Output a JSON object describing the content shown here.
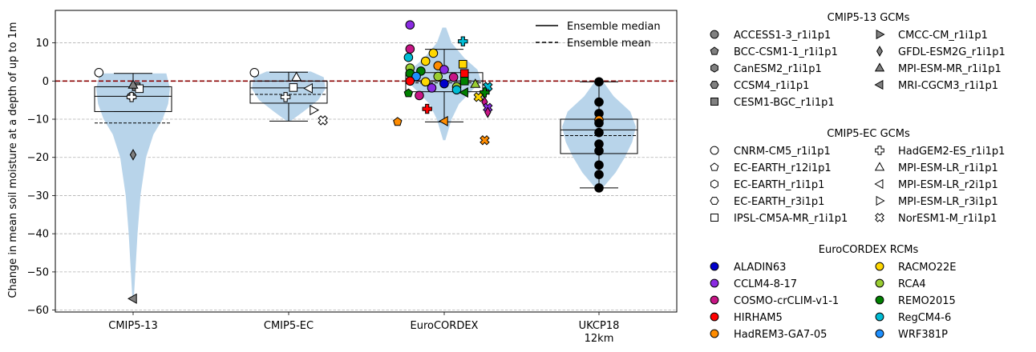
{
  "chart_data": {
    "type": "violin+box+scatter",
    "ylabel": "Change in mean soil moisture at a depth of up to 1m",
    "ylim": [
      -60.5,
      18.5
    ],
    "yticks": [
      10,
      0,
      -10,
      -20,
      -30,
      -40,
      -50,
      -60
    ],
    "grid": "horizontal dashed",
    "zero_line": {
      "y": 0,
      "color": "#8b0000",
      "style": "dashed"
    },
    "categories": [
      "CMIP5-13",
      "CMIP5-EC",
      "EuroCORDEX",
      "UKCP18\n12km"
    ],
    "legend_lines": [
      {
        "label": "Ensemble median",
        "style": "solid"
      },
      {
        "label": "Ensemble mean",
        "style": "dashed"
      }
    ],
    "legend_position": "top-right",
    "violins": [
      {
        "category": 0,
        "profile": [
          [
            2,
            0.9
          ],
          [
            -2,
            1.0
          ],
          [
            -6,
            0.95
          ],
          [
            -10,
            0.8
          ],
          [
            -14,
            0.55
          ],
          [
            -20,
            0.35
          ],
          [
            -30,
            0.2
          ],
          [
            -40,
            0.12
          ],
          [
            -50,
            0.06
          ],
          [
            -57,
            0.02
          ]
        ]
      },
      {
        "category": 1,
        "profile": [
          [
            2.5,
            0.6
          ],
          [
            1,
            0.95
          ],
          [
            -2,
            1.0
          ],
          [
            -5,
            0.8
          ],
          [
            -8,
            0.4
          ],
          [
            -10.5,
            0.05
          ]
        ]
      },
      {
        "category": 2,
        "profile": [
          [
            14,
            0.05
          ],
          [
            10,
            0.2
          ],
          [
            6,
            0.55
          ],
          [
            3,
            0.9
          ],
          [
            0,
            1.0
          ],
          [
            -3,
            0.7
          ],
          [
            -6,
            0.4
          ],
          [
            -10,
            0.2
          ],
          [
            -15.5,
            0.03
          ]
        ]
      },
      {
        "category": 3,
        "profile": [
          [
            0,
            0.1
          ],
          [
            -4,
            0.4
          ],
          [
            -8,
            0.85
          ],
          [
            -12,
            1.0
          ],
          [
            -16,
            0.9
          ],
          [
            -20,
            0.7
          ],
          [
            -24,
            0.45
          ],
          [
            -28,
            0.1
          ]
        ]
      }
    ],
    "boxes": [
      {
        "category": 0,
        "q1": -8,
        "median": -4,
        "q3": -1.5,
        "whisker_low": -8,
        "whisker_high": 2,
        "mean": -11
      },
      {
        "category": 1,
        "q1": -5.8,
        "median": -1.8,
        "q3": 0,
        "whisker_low": -10.5,
        "whisker_high": 2.3,
        "mean": -3.5
      },
      {
        "category": 2,
        "q1": -2.8,
        "median": 0,
        "q3": 2.2,
        "whisker_low": -10.7,
        "whisker_high": 8.3,
        "mean": -0.5
      },
      {
        "category": 3,
        "q1": -19,
        "median": -12.8,
        "q3": -10,
        "whisker_low": -28,
        "whisker_high": -0.2,
        "mean": -14.3
      }
    ],
    "points": [
      {
        "category": 0,
        "dx": -0.22,
        "y": 2.2,
        "marker": "circle",
        "filled": false,
        "color": "#ffffff"
      },
      {
        "category": 0,
        "dx": 0.02,
        "y": -1.5,
        "marker": "square",
        "filled": true,
        "color": "#808080"
      },
      {
        "category": 0,
        "dx": 0.04,
        "y": -2.0,
        "marker": "square",
        "filled": false,
        "color": "#ffffff"
      },
      {
        "category": 0,
        "dx": 0.0,
        "y": -1.0,
        "marker": "triangle-up",
        "filled": true,
        "color": "#808080"
      },
      {
        "category": 0,
        "dx": -0.01,
        "y": -4.0,
        "marker": "hexagon",
        "filled": true,
        "color": "#808080"
      },
      {
        "category": 0,
        "dx": -0.01,
        "y": -4.2,
        "marker": "plus",
        "filled": false,
        "color": "#ffffff"
      },
      {
        "category": 0,
        "dx": 0.0,
        "y": -19.3,
        "marker": "thin-diamond",
        "filled": true,
        "color": "#808080"
      },
      {
        "category": 0,
        "dx": 0.0,
        "y": -57,
        "marker": "triangle-left",
        "filled": true,
        "color": "#808080"
      },
      {
        "category": 1,
        "dx": -0.22,
        "y": 2.2,
        "marker": "circle",
        "filled": false,
        "color": "#ffffff"
      },
      {
        "category": 1,
        "dx": 0.05,
        "y": 1.0,
        "marker": "triangle-up",
        "filled": false,
        "color": "#ffffff"
      },
      {
        "category": 1,
        "dx": 0.03,
        "y": -1.7,
        "marker": "square",
        "filled": false,
        "color": "#ffffff"
      },
      {
        "category": 1,
        "dx": 0.13,
        "y": -1.9,
        "marker": "triangle-left",
        "filled": false,
        "color": "#ffffff"
      },
      {
        "category": 1,
        "dx": -0.02,
        "y": -4.2,
        "marker": "plus",
        "filled": false,
        "color": "#ffffff"
      },
      {
        "category": 1,
        "dx": 0.16,
        "y": -7.6,
        "marker": "triangle-right",
        "filled": false,
        "color": "#ffffff"
      },
      {
        "category": 1,
        "dx": 0.22,
        "y": -10.3,
        "marker": "x",
        "filled": false,
        "color": "#ffffff"
      },
      {
        "category": 2,
        "dx": -0.22,
        "y": 14.7,
        "marker": "circle",
        "filled": true,
        "color": "#8a2be2"
      },
      {
        "category": 2,
        "dx": 0.12,
        "y": 10.4,
        "marker": "plus",
        "filled": true,
        "color": "#00bcd4"
      },
      {
        "category": 2,
        "dx": -0.22,
        "y": 8.4,
        "marker": "circle",
        "filled": true,
        "color": "#c71585"
      },
      {
        "category": 2,
        "dx": -0.07,
        "y": 7.3,
        "marker": "circle",
        "filled": true,
        "color": "#ffd700"
      },
      {
        "category": 2,
        "dx": -0.23,
        "y": 6.2,
        "marker": "circle",
        "filled": true,
        "color": "#00bcd4"
      },
      {
        "category": 2,
        "dx": -0.12,
        "y": 5.2,
        "marker": "circle",
        "filled": true,
        "color": "#ffd700"
      },
      {
        "category": 2,
        "dx": 0.12,
        "y": 4.4,
        "marker": "square",
        "filled": true,
        "color": "#ffd700"
      },
      {
        "category": 2,
        "dx": -0.22,
        "y": 3.4,
        "marker": "circle",
        "filled": true,
        "color": "#9acd32"
      },
      {
        "category": 2,
        "dx": -0.04,
        "y": 4.0,
        "marker": "circle",
        "filled": true,
        "color": "#ff8c00"
      },
      {
        "category": 2,
        "dx": 0.0,
        "y": 3.0,
        "marker": "circle",
        "filled": true,
        "color": "#8a2be2"
      },
      {
        "category": 2,
        "dx": -0.15,
        "y": 2.6,
        "marker": "circle",
        "filled": true,
        "color": "#008000"
      },
      {
        "category": 2,
        "dx": -0.22,
        "y": 2.0,
        "marker": "circle",
        "filled": true,
        "color": "#008000"
      },
      {
        "category": 2,
        "dx": 0.13,
        "y": 2.0,
        "marker": "square",
        "filled": true,
        "color": "#ff0000"
      },
      {
        "category": 2,
        "dx": -0.18,
        "y": 1.2,
        "marker": "circle",
        "filled": true,
        "color": "#1e90ff"
      },
      {
        "category": 2,
        "dx": -0.04,
        "y": 1.2,
        "marker": "circle",
        "filled": true,
        "color": "#9acd32"
      },
      {
        "category": 2,
        "dx": 0.06,
        "y": 1.0,
        "marker": "circle",
        "filled": true,
        "color": "#c71585"
      },
      {
        "category": 2,
        "dx": -0.22,
        "y": 0.0,
        "marker": "circle",
        "filled": true,
        "color": "#ff0000"
      },
      {
        "category": 2,
        "dx": -0.12,
        "y": -0.2,
        "marker": "circle",
        "filled": true,
        "color": "#ffd700"
      },
      {
        "category": 2,
        "dx": 0.13,
        "y": 0.0,
        "marker": "square",
        "filled": true,
        "color": "#008000"
      },
      {
        "category": 2,
        "dx": 0.2,
        "y": -0.8,
        "marker": "triangle-up",
        "filled": true,
        "color": "#9acd32"
      },
      {
        "category": 2,
        "dx": 0.0,
        "y": -0.7,
        "marker": "circle",
        "filled": true,
        "color": "#0000cd"
      },
      {
        "category": 2,
        "dx": 0.08,
        "y": -1.5,
        "marker": "circle",
        "filled": true,
        "color": "#9acd32"
      },
      {
        "category": 2,
        "dx": -0.08,
        "y": -1.8,
        "marker": "circle",
        "filled": true,
        "color": "#8a2be2"
      },
      {
        "category": 2,
        "dx": 0.08,
        "y": -2.3,
        "marker": "circle",
        "filled": true,
        "color": "#00bcd4"
      },
      {
        "category": 2,
        "dx": 0.28,
        "y": -1.5,
        "marker": "x",
        "filled": true,
        "color": "#00bcd4"
      },
      {
        "category": 2,
        "dx": -0.23,
        "y": -3.2,
        "marker": "pentagon",
        "filled": true,
        "color": "#008000"
      },
      {
        "category": 2,
        "dx": -0.16,
        "y": -3.8,
        "marker": "circle",
        "filled": true,
        "color": "#c71585"
      },
      {
        "category": 2,
        "dx": 0.13,
        "y": -3.0,
        "marker": "triangle-left",
        "filled": true,
        "color": "#008000"
      },
      {
        "category": 2,
        "dx": 0.26,
        "y": -3.0,
        "marker": "plus",
        "filled": true,
        "color": "#008000"
      },
      {
        "category": 2,
        "dx": 0.22,
        "y": -4.2,
        "marker": "x",
        "filled": true,
        "color": "#ffd700"
      },
      {
        "category": 2,
        "dx": 0.26,
        "y": -5.5,
        "marker": "thin-diamond",
        "filled": true,
        "color": "#c71585"
      },
      {
        "category": 2,
        "dx": 0.28,
        "y": -7.0,
        "marker": "x",
        "filled": true,
        "color": "#8a2be2"
      },
      {
        "category": 2,
        "dx": 0.28,
        "y": -8.2,
        "marker": "thin-diamond",
        "filled": true,
        "color": "#c71585"
      },
      {
        "category": 2,
        "dx": -0.11,
        "y": -7.3,
        "marker": "plus",
        "filled": true,
        "color": "#ff0000"
      },
      {
        "category": 2,
        "dx": -0.3,
        "y": -10.7,
        "marker": "pentagon",
        "filled": true,
        "color": "#ff8c00"
      },
      {
        "category": 2,
        "dx": 0.0,
        "y": -10.5,
        "marker": "triangle-left",
        "filled": true,
        "color": "#ff8c00"
      },
      {
        "category": 2,
        "dx": 0.26,
        "y": -15.5,
        "marker": "x",
        "filled": true,
        "color": "#ff8c00"
      },
      {
        "category": 3,
        "dx": 0.0,
        "y": -0.2,
        "marker": "circle",
        "filled": true,
        "color": "#000000"
      },
      {
        "category": 3,
        "dx": 0.0,
        "y": -5.5,
        "marker": "circle",
        "filled": true,
        "color": "#000000"
      },
      {
        "category": 3,
        "dx": 0.0,
        "y": -8.5,
        "marker": "circle",
        "filled": true,
        "color": "#000000"
      },
      {
        "category": 3,
        "dx": 0.0,
        "y": -10.2,
        "marker": "circle",
        "filled": true,
        "color": "#ff8c00"
      },
      {
        "category": 3,
        "dx": 0.0,
        "y": -11.0,
        "marker": "circle",
        "filled": true,
        "color": "#000000"
      },
      {
        "category": 3,
        "dx": 0.0,
        "y": -13.5,
        "marker": "circle",
        "filled": true,
        "color": "#000000"
      },
      {
        "category": 3,
        "dx": 0.0,
        "y": -16.5,
        "marker": "circle",
        "filled": true,
        "color": "#000000"
      },
      {
        "category": 3,
        "dx": 0.0,
        "y": -18.3,
        "marker": "circle",
        "filled": true,
        "color": "#000000"
      },
      {
        "category": 3,
        "dx": 0.0,
        "y": -22.0,
        "marker": "circle",
        "filled": true,
        "color": "#000000"
      },
      {
        "category": 3,
        "dx": 0.0,
        "y": -24.5,
        "marker": "circle",
        "filled": true,
        "color": "#000000"
      },
      {
        "category": 3,
        "dx": 0.0,
        "y": -28.0,
        "marker": "circle",
        "filled": true,
        "color": "#000000"
      }
    ]
  },
  "legend_groups": [
    {
      "title": "CMIP5-13 GCMs",
      "columns": [
        [
          {
            "label": "ACCESS1-3_r1i1p1",
            "marker": "circle",
            "color": "#808080"
          },
          {
            "label": "BCC-CSM1-1_r1i1p1",
            "marker": "pentagon",
            "color": "#808080"
          },
          {
            "label": "CanESM2_r1i1p1",
            "marker": "hexagon",
            "color": "#808080"
          },
          {
            "label": "CCSM4_r1i1p1",
            "marker": "hexagon2",
            "color": "#808080"
          },
          {
            "label": "CESM1-BGC_r1i1p1",
            "marker": "square",
            "color": "#808080"
          }
        ],
        [
          {
            "label": "CMCC-CM_r1i1p1",
            "marker": "triangle-right",
            "color": "#808080"
          },
          {
            "label": "GFDL-ESM2G_r1i1p1",
            "marker": "thin-diamond",
            "color": "#808080"
          },
          {
            "label": "MPI-ESM-MR_r1i1p1",
            "marker": "triangle-up",
            "color": "#808080"
          },
          {
            "label": "MRI-CGCM3_r1i1p1",
            "marker": "triangle-left",
            "color": "#808080"
          }
        ]
      ]
    },
    {
      "title": "CMIP5-EC GCMs",
      "columns": [
        [
          {
            "label": "CNRM-CM5_r1i1p1",
            "marker": "circle",
            "color": "#ffffff"
          },
          {
            "label": "EC-EARTH_r12i1p1",
            "marker": "pentagon",
            "color": "#ffffff"
          },
          {
            "label": "EC-EARTH_r1i1p1",
            "marker": "hexagon",
            "color": "#ffffff"
          },
          {
            "label": "EC-EARTH_r3i1p1",
            "marker": "hexagon2",
            "color": "#ffffff"
          },
          {
            "label": "IPSL-CM5A-MR_r1i1p1",
            "marker": "square",
            "color": "#ffffff"
          }
        ],
        [
          {
            "label": "HadGEM2-ES_r1i1p1",
            "marker": "plus",
            "color": "#ffffff"
          },
          {
            "label": "MPI-ESM-LR_r1i1p1",
            "marker": "triangle-up",
            "color": "#ffffff"
          },
          {
            "label": "MPI-ESM-LR_r2i1p1",
            "marker": "triangle-left",
            "color": "#ffffff"
          },
          {
            "label": "MPI-ESM-LR_r3i1p1",
            "marker": "triangle-right",
            "color": "#ffffff"
          },
          {
            "label": "NorESM1-M_r1i1p1",
            "marker": "x",
            "color": "#ffffff"
          }
        ]
      ]
    },
    {
      "title": "EuroCORDEX RCMs",
      "columns": [
        [
          {
            "label": "ALADIN63",
            "marker": "circle",
            "color": "#0000cd"
          },
          {
            "label": "CCLM4-8-17",
            "marker": "circle",
            "color": "#8a2be2"
          },
          {
            "label": "COSMO-crCLIM-v1-1",
            "marker": "circle",
            "color": "#c71585"
          },
          {
            "label": "HIRHAM5",
            "marker": "circle",
            "color": "#ff0000"
          },
          {
            "label": "HadREM3-GA7-05",
            "marker": "circle",
            "color": "#ff8c00"
          }
        ],
        [
          {
            "label": "RACMO22E",
            "marker": "circle",
            "color": "#ffd700"
          },
          {
            "label": "RCA4",
            "marker": "circle",
            "color": "#9acd32"
          },
          {
            "label": "REMO2015",
            "marker": "circle",
            "color": "#008000"
          },
          {
            "label": "RegCM4-6",
            "marker": "circle",
            "color": "#00bcd4"
          },
          {
            "label": "WRF381P",
            "marker": "circle",
            "color": "#1e90ff"
          }
        ]
      ]
    }
  ],
  "colors": {
    "violin": "#b8d4ea",
    "zero_line": "#8b0000",
    "grid": "#b0b0b0"
  }
}
